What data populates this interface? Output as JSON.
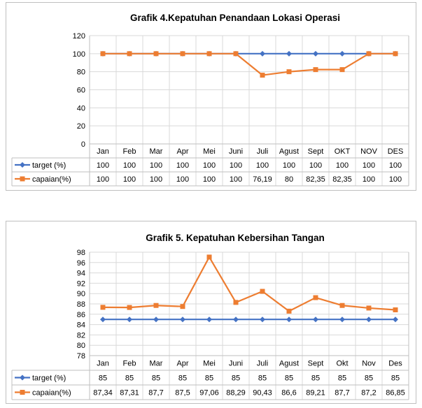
{
  "chart_data": [
    {
      "type": "line",
      "title": "Grafik 4.Kepatuhan Penandaan Lokasi Operasi",
      "categories": [
        "Jan",
        "Feb",
        "Mar",
        "Apr",
        "Mei",
        "Juni",
        "Juli",
        "Agust",
        "Sept",
        "OKT",
        "NOV",
        "DES"
      ],
      "ylim": [
        0,
        120
      ],
      "yticks": [
        0,
        20,
        40,
        60,
        80,
        100,
        120
      ],
      "grid": true,
      "legend": "data-table",
      "series": [
        {
          "name": "target (%)",
          "color": "#4472c4",
          "marker": "diamond",
          "values": [
            100,
            100,
            100,
            100,
            100,
            100,
            100,
            100,
            100,
            100,
            100,
            100
          ],
          "labels": [
            "100",
            "100",
            "100",
            "100",
            "100",
            "100",
            "100",
            "100",
            "100",
            "100",
            "100",
            "100"
          ]
        },
        {
          "name": "capaian(%)",
          "color": "#ed7d31",
          "marker": "square",
          "values": [
            100,
            100,
            100,
            100,
            100,
            100,
            76.19,
            80,
            82.35,
            82.35,
            100,
            100
          ],
          "labels": [
            "100",
            "100",
            "100",
            "100",
            "100",
            "100",
            "76,19",
            "80",
            "82,35",
            "82,35",
            "100",
            "100"
          ]
        }
      ]
    },
    {
      "type": "line",
      "title": "Grafik 5. Kepatuhan Kebersihan Tangan",
      "categories": [
        "Jan",
        "Feb",
        "Mar",
        "Apr",
        "Mei",
        "Juni",
        "Juli",
        "Agust",
        "Sept",
        "Okt",
        "Nov",
        "Des"
      ],
      "ylim": [
        78,
        98
      ],
      "yticks": [
        78,
        80,
        82,
        84,
        86,
        88,
        90,
        92,
        94,
        96,
        98
      ],
      "grid": true,
      "legend": "data-table",
      "series": [
        {
          "name": "target (%)",
          "color": "#4472c4",
          "marker": "diamond",
          "values": [
            85,
            85,
            85,
            85,
            85,
            85,
            85,
            85,
            85,
            85,
            85,
            85
          ],
          "labels": [
            "85",
            "85",
            "85",
            "85",
            "85",
            "85",
            "85",
            "85",
            "85",
            "85",
            "85",
            "85"
          ]
        },
        {
          "name": "capaian(%)",
          "color": "#ed7d31",
          "marker": "square",
          "values": [
            87.34,
            87.31,
            87.7,
            87.5,
            97.06,
            88.29,
            90.43,
            86.6,
            89.21,
            87.7,
            87.2,
            86.85
          ],
          "labels": [
            "87,34",
            "87,31",
            "87,7",
            "87,5",
            "97,06",
            "88,29",
            "90,43",
            "86,6",
            "89,21",
            "87,7",
            "87,2",
            "86,85"
          ]
        }
      ]
    }
  ]
}
